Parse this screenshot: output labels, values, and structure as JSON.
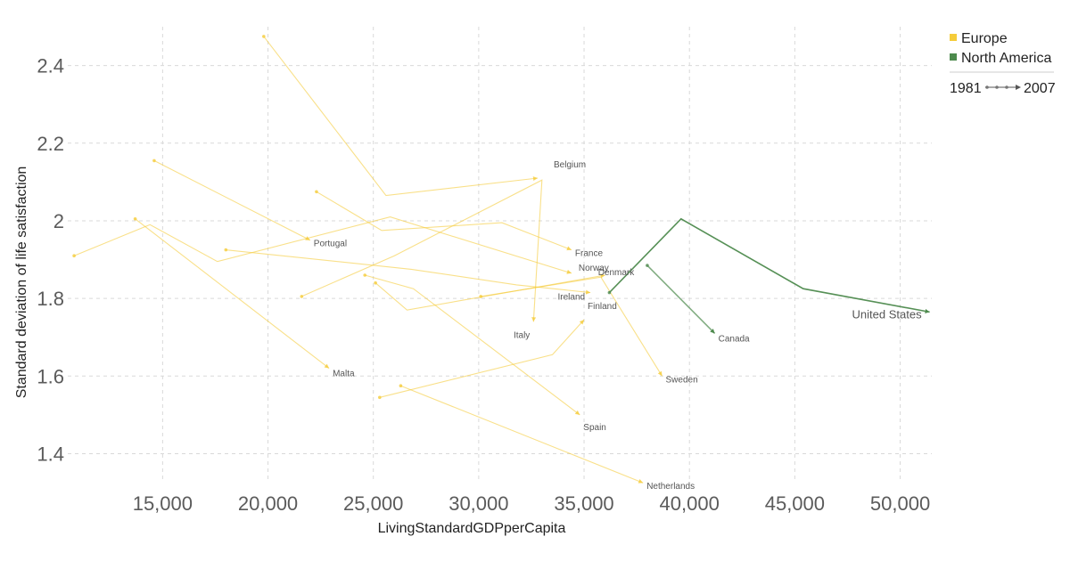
{
  "chart_data": {
    "type": "line",
    "xlabel": "LivingStandardGDPperCapita",
    "ylabel": "Standard deviation of life satisfaction",
    "xlim": [
      10500,
      51500
    ],
    "ylim": [
      1.33,
      2.5
    ],
    "x_ticks": [
      15000,
      20000,
      25000,
      30000,
      35000,
      40000,
      45000,
      50000
    ],
    "x_tick_labels": [
      "15,000",
      "20,000",
      "25,000",
      "30,000",
      "35,000",
      "40,000",
      "45,000",
      "50,000"
    ],
    "y_ticks": [
      1.4,
      1.6,
      1.8,
      2.0,
      2.2,
      2.4
    ],
    "y_tick_labels": [
      "1.4",
      "1.6",
      "1.8",
      "2",
      "2.2",
      "2.4"
    ],
    "grid": true,
    "legend": {
      "placement": "top-right",
      "entries": [
        {
          "name": "Europe",
          "color": "#f5cc3a"
        },
        {
          "name": "North America",
          "color": "#4d8a4d"
        }
      ],
      "time_start": "1981",
      "time_end": "2007"
    },
    "series": [
      {
        "name": "Belgium",
        "group": "Europe",
        "label": "Belgium",
        "x": [
          19800,
          25600,
          32800
        ],
        "y": [
          2.475,
          2.065,
          2.11
        ]
      },
      {
        "name": "Portugal",
        "group": "Europe",
        "label": "Portugal",
        "x": [
          14600,
          22000
        ],
        "y": [
          2.155,
          1.95
        ]
      },
      {
        "name": "France",
        "group": "Europe",
        "label": "France",
        "x": [
          22300,
          25400,
          31100,
          34400
        ],
        "y": [
          2.075,
          1.975,
          1.995,
          1.925
        ]
      },
      {
        "name": "Norway",
        "group": "Europe",
        "label": "Norway",
        "x": [
          10800,
          14400,
          17600,
          25800,
          34400
        ],
        "y": [
          1.91,
          1.99,
          1.895,
          2.01,
          1.865
        ]
      },
      {
        "name": "Ireland",
        "group": "Europe",
        "label": "Ireland",
        "x": [
          18000,
          26800,
          31800,
          35300
        ],
        "y": [
          1.925,
          1.875,
          1.835,
          1.815
        ]
      },
      {
        "name": "Denmark",
        "group": "Europe",
        "label": "Denmark",
        "x": [
          25100,
          26600,
          36000
        ],
        "y": [
          1.84,
          1.77,
          1.86
        ]
      },
      {
        "name": "Italy",
        "group": "Europe",
        "label": "Italy",
        "x": [
          21600,
          26000,
          33000,
          32600
        ],
        "y": [
          1.805,
          1.91,
          2.105,
          1.74
        ]
      },
      {
        "name": "Finland",
        "group": "Europe",
        "label": "Finland",
        "x": [
          25300,
          33500,
          35000
        ],
        "y": [
          1.545,
          1.655,
          1.745
        ]
      },
      {
        "name": "Malta",
        "group": "Europe",
        "label": "Malta",
        "x": [
          13700,
          22900
        ],
        "y": [
          2.005,
          1.62
        ]
      },
      {
        "name": "Spain",
        "group": "Europe",
        "label": "Spain",
        "x": [
          24600,
          26900,
          34800
        ],
        "y": [
          1.86,
          1.825,
          1.5
        ]
      },
      {
        "name": "Sweden",
        "group": "Europe",
        "label": "Sweden",
        "x": [
          30100,
          35800,
          38700
        ],
        "y": [
          1.805,
          1.855,
          1.6
        ]
      },
      {
        "name": "Netherlands",
        "group": "Europe",
        "label": "Netherlands",
        "x": [
          26300,
          37800
        ],
        "y": [
          1.575,
          1.325
        ]
      },
      {
        "name": "Canada",
        "group": "North America",
        "label": "Canada",
        "x": [
          38000,
          41200
        ],
        "y": [
          1.885,
          1.71
        ]
      },
      {
        "name": "United States",
        "group": "North America",
        "label": "United States",
        "x": [
          36200,
          39600,
          45400,
          51400
        ],
        "y": [
          1.815,
          2.005,
          1.825,
          1.765
        ]
      }
    ]
  }
}
